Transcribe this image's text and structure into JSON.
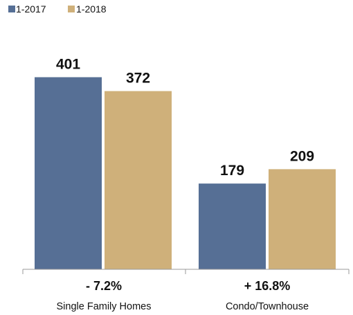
{
  "chart_data": {
    "type": "bar",
    "categories": [
      "Single Family Homes",
      "Condo/Townhouse"
    ],
    "change_labels": [
      "- 7.2%",
      "+ 16.8%"
    ],
    "series": [
      {
        "name": "1-2017",
        "values": [
          401,
          179
        ],
        "color": "#566f95"
      },
      {
        "name": "1-2018",
        "values": [
          372,
          209
        ],
        "color": "#cfb07a"
      }
    ],
    "ylim": [
      0,
      500
    ],
    "grid": false,
    "legend_position": "top-left",
    "title": "",
    "xlabel": "",
    "ylabel": ""
  }
}
